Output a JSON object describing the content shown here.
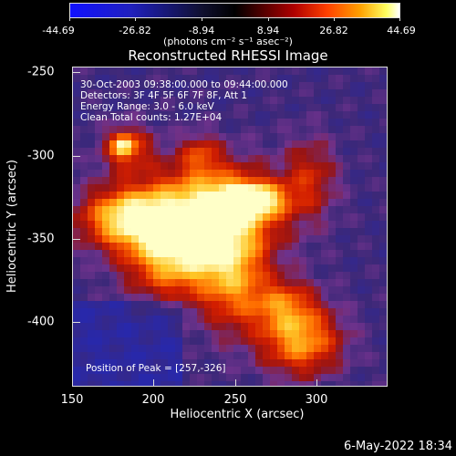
{
  "colorbar": {
    "ticks": [
      "-44.69",
      "-26.82",
      "-8.94",
      "8.94",
      "26.82",
      "44.69"
    ],
    "units": "(photons cm⁻² s⁻¹ asec⁻²)"
  },
  "title": "Reconstructed RHESSI Image",
  "info": {
    "line1": "30-Oct-2003 09:38:00.000 to 09:44:00.000",
    "line2": "Detectors: 3F 4F 5F 6F 7F 8F, Att 1",
    "line3": "Energy Range: 3.0 - 6.0 keV",
    "line4": "Clean    Total counts: 1.27E+04",
    "peak": "Position of Peak = [257,-326]"
  },
  "axes": {
    "xlabel": "Heliocentric X (arcsec)",
    "ylabel": "Heliocentric Y (arcsec)",
    "xticks": [
      "150",
      "200",
      "250",
      "300"
    ],
    "yticks": [
      "-250",
      "-300",
      "-350",
      "-400"
    ]
  },
  "date": "6-May-2022 18:34"
}
